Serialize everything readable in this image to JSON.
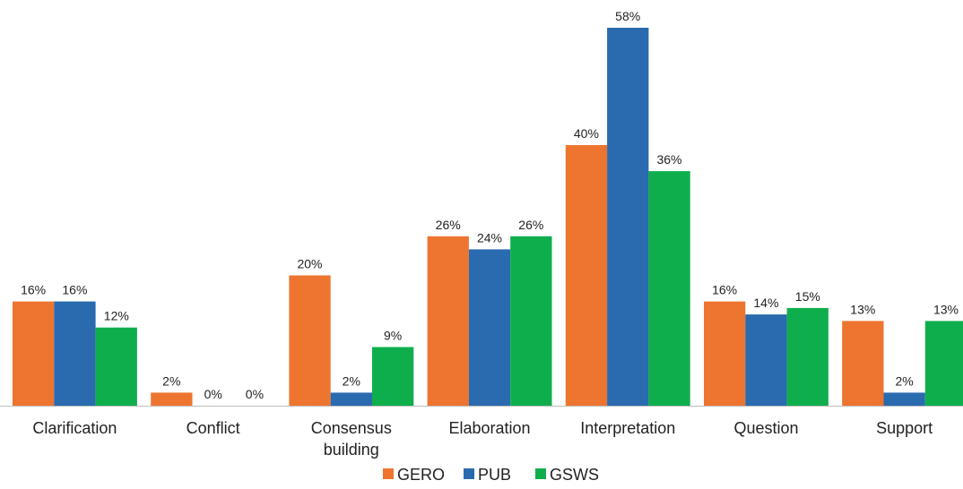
{
  "chart_data": {
    "type": "bar",
    "categories": [
      [
        "Clarification"
      ],
      [
        "Conflict"
      ],
      [
        "Consensus",
        "building"
      ],
      [
        "Elaboration"
      ],
      [
        "Interpretation"
      ],
      [
        "Question"
      ],
      [
        "Support"
      ]
    ],
    "series": [
      {
        "name": "GERO",
        "color": "#ED7530",
        "values": [
          16,
          2,
          20,
          26,
          40,
          16,
          13
        ]
      },
      {
        "name": "PUB",
        "color": "#2A6AAF",
        "values": [
          16,
          0,
          2,
          24,
          58,
          14,
          2
        ]
      },
      {
        "name": "GSWS",
        "color": "#0FAE4D",
        "values": [
          12,
          0,
          9,
          26,
          36,
          15,
          13
        ]
      }
    ],
    "value_suffix": "%",
    "ylim": [
      0,
      58
    ],
    "grid": false,
    "legend_position": "bottom-center",
    "axis_color": "#BFBFBF"
  }
}
